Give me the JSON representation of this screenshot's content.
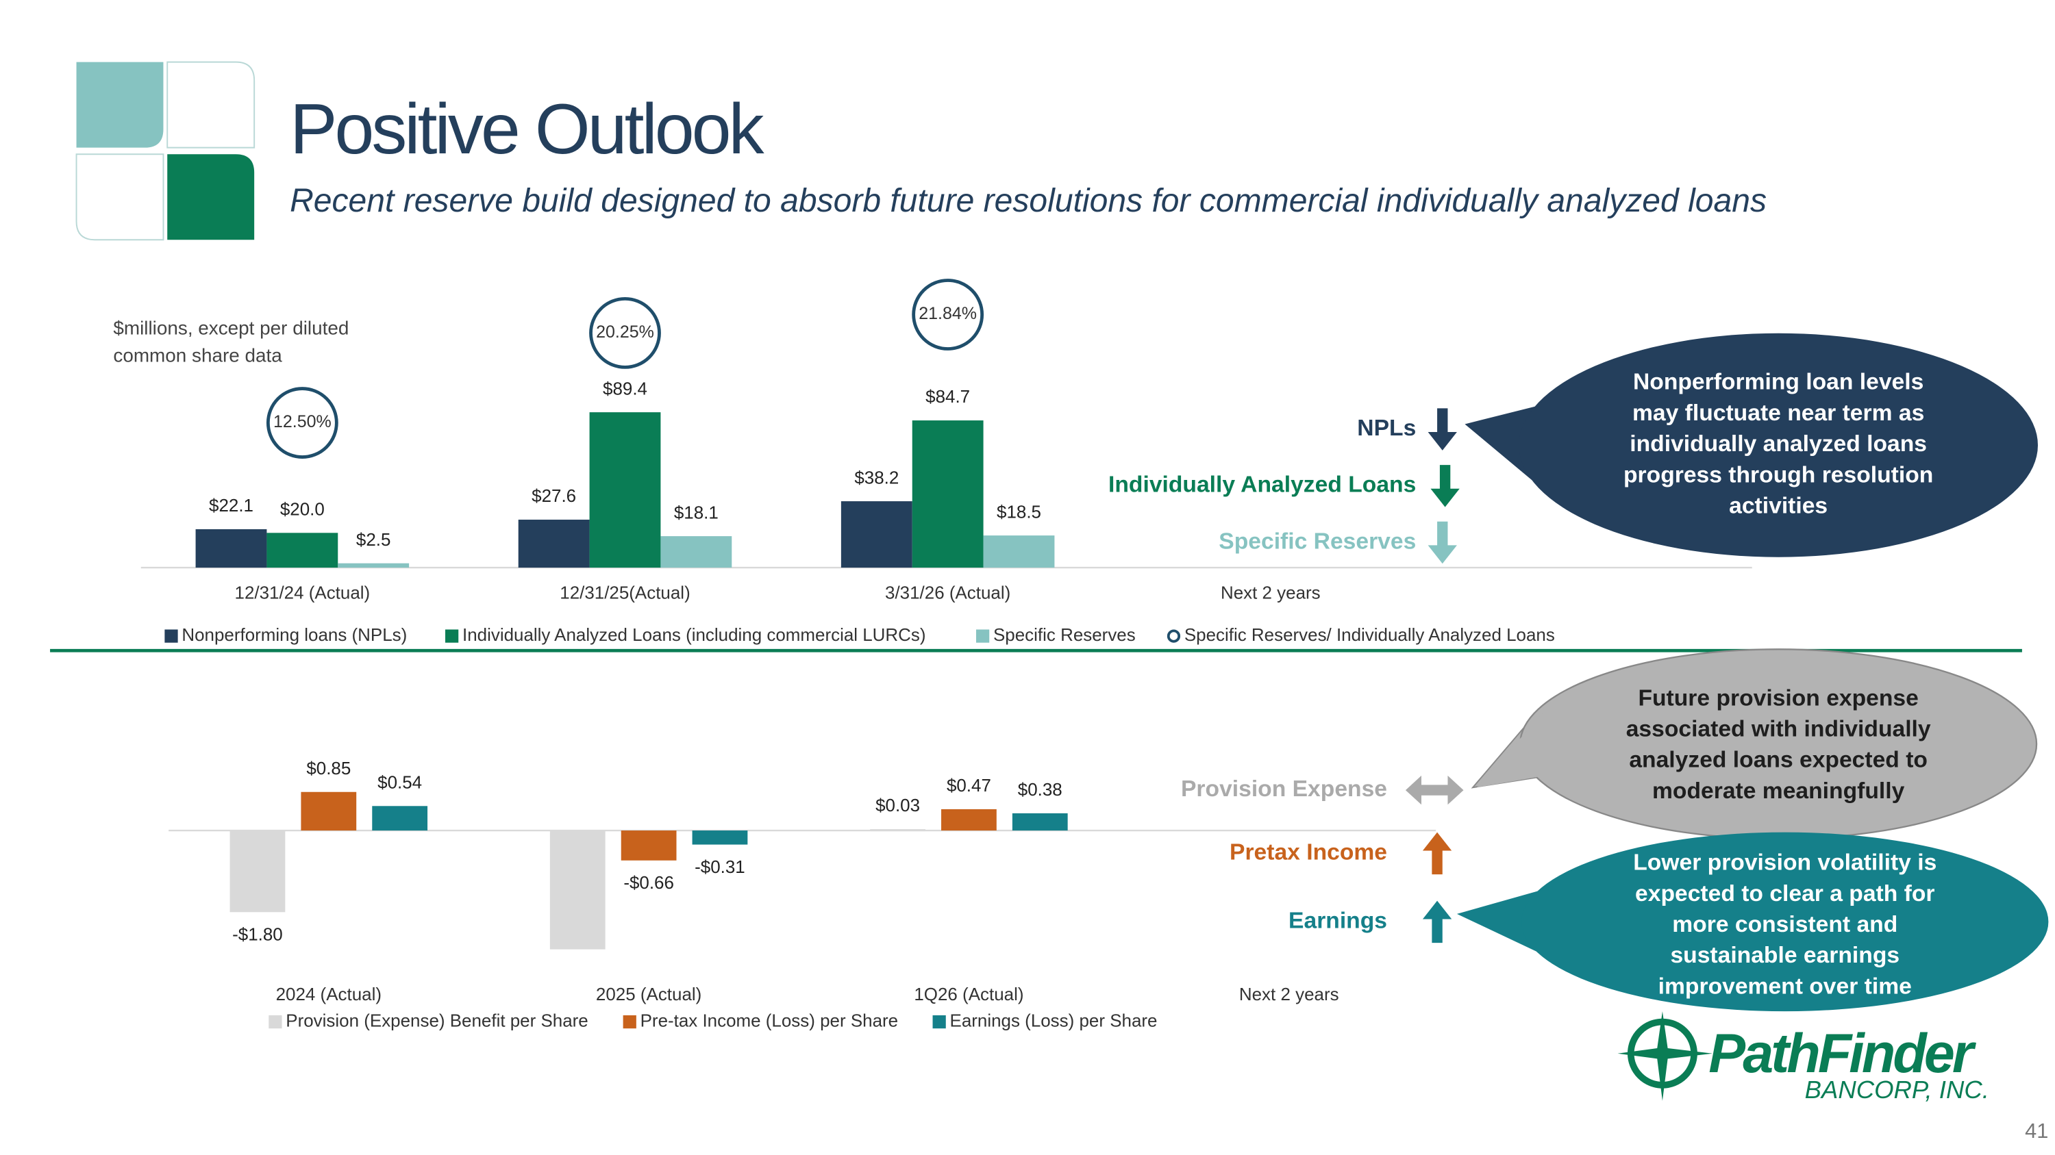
{
  "header": {
    "title": "Positive Outlook",
    "subtitle": "Recent reserve build designed to absorb future resolutions for commercial individually analyzed loans"
  },
  "chart_data": [
    {
      "type": "bar",
      "annotation": [
        "$millions, except per diluted",
        "common share data"
      ],
      "categories": [
        "12/31/24 (Actual)",
        "12/31/25(Actual)",
        "3/31/26 (Actual)",
        "Next 2 years"
      ],
      "series": [
        {
          "name": "Nonperforming loans (NPLs)",
          "color": "#243f5c",
          "values": [
            22.1,
            27.6,
            38.2,
            null
          ],
          "value_labels": [
            "$22.1",
            "$27.6",
            "$38.2",
            null
          ]
        },
        {
          "name": "Individually Analyzed Loans (including commercial LURCs)",
          "color": "#0a7d55",
          "values": [
            20.0,
            89.4,
            84.7,
            null
          ],
          "value_labels": [
            "$20.0",
            "$89.4",
            "$84.7",
            null
          ]
        },
        {
          "name": "Specific Reserves",
          "color": "#86c3c1",
          "values": [
            2.5,
            18.1,
            18.5,
            null
          ],
          "value_labels": [
            "$2.5",
            "$18.1",
            "$18.5",
            null
          ]
        },
        {
          "name": "Specific Reserves/ Individually Analyzed Loans",
          "color": "#1f4e6b",
          "axis": "y2",
          "marker": "circle",
          "values": [
            12.5,
            20.25,
            21.84,
            null
          ],
          "value_labels": [
            "12.50%",
            "20.25%",
            "21.84%",
            null
          ]
        }
      ],
      "ylim": [
        0,
        100
      ],
      "y2lim": [
        0,
        15
      ]
    },
    {
      "type": "bar",
      "categories": [
        "2024 (Actual)",
        "2025 (Actual)",
        "1Q26 (Actual)",
        "Next 2 years"
      ],
      "series": [
        {
          "name": "Provision (Expense) Benefit per Share",
          "color": "#d9d9d9",
          "values": [
            -1.8,
            -2.62,
            0.03,
            null
          ],
          "value_labels": [
            "-$1.80",
            null,
            "$0.03",
            null
          ]
        },
        {
          "name": "Pre-tax Income (Loss) per Share",
          "color": "#c8621c",
          "values": [
            0.85,
            -0.66,
            0.47,
            null
          ],
          "value_labels": [
            "$0.85",
            "-$0.66",
            "$0.47",
            null
          ]
        },
        {
          "name": "Earnings (Loss) per Share",
          "color": "#15808a",
          "values": [
            0.54,
            -0.31,
            0.38,
            null
          ],
          "value_labels": [
            "$0.54",
            "-$0.31",
            "$0.38",
            null
          ]
        }
      ],
      "ylim": [
        -3,
        1.5
      ]
    }
  ],
  "indicators": [
    {
      "label": "NPLs",
      "direction": "down",
      "color": "#243f5c"
    },
    {
      "label": "Individually Analyzed Loans",
      "direction": "down",
      "color": "#0a7d55"
    },
    {
      "label": "Specific Reserves",
      "direction": "down",
      "color": "#86c3c1"
    },
    {
      "label": "Provision Expense",
      "direction": "both",
      "color": "#aaaaaa"
    },
    {
      "label": "Pretax Income",
      "direction": "up",
      "color": "#c8621c"
    },
    {
      "label": "Earnings",
      "direction": "up",
      "color": "#15808a"
    }
  ],
  "callouts": [
    {
      "lines": [
        "Nonperforming loan levels",
        "may fluctuate near term as",
        "individually analyzed loans",
        "progress through resolution",
        "activities"
      ],
      "fill": "#243f5c",
      "text_color": "#ffffff"
    },
    {
      "lines": [
        "Future provision expense",
        "associated with individually",
        "analyzed loans expected to",
        "moderate meaningfully"
      ],
      "fill": "#b3b3b3",
      "text_color": "#1e1e1e"
    },
    {
      "lines": [
        "Lower provision volatility is",
        "expected to clear a path for",
        "more consistent and",
        "sustainable earnings",
        "improvement over time"
      ],
      "fill": "#15808a",
      "text_color": "#ffffff"
    }
  ],
  "logo": {
    "name": "PathFinder",
    "subtitle": "BANCORP, INC."
  },
  "page_number": 41
}
